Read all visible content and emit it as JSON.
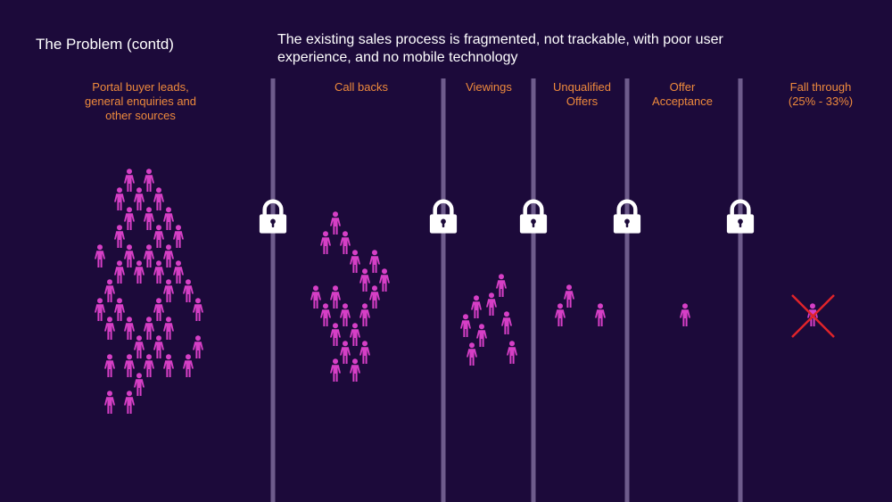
{
  "slide": {
    "title": "The Problem (contd)",
    "subtitle": "The existing sales process is fragmented, not trackable, with poor user experience, and no mobile technology"
  },
  "stages": [
    {
      "label": "Portal buyer leads,\ngeneral enquiries and\nother sources"
    },
    {
      "label": "Call backs"
    },
    {
      "label": "Viewings"
    },
    {
      "label": "Unqualified\nOffers"
    },
    {
      "label": "Offer\nAcceptance"
    },
    {
      "label": "Fall through\n(25% - 33%)"
    }
  ],
  "gates": 5,
  "colors": {
    "background": "#1c0a3a",
    "person": "#d63fc6",
    "label": "#ee8a3c",
    "divider": "#6e5c8c",
    "lock": "#ffffff",
    "cross": "#e0242a"
  },
  "icons": {
    "person": "person-icon",
    "lock": "padlock-icon",
    "cross": "cross-icon"
  }
}
